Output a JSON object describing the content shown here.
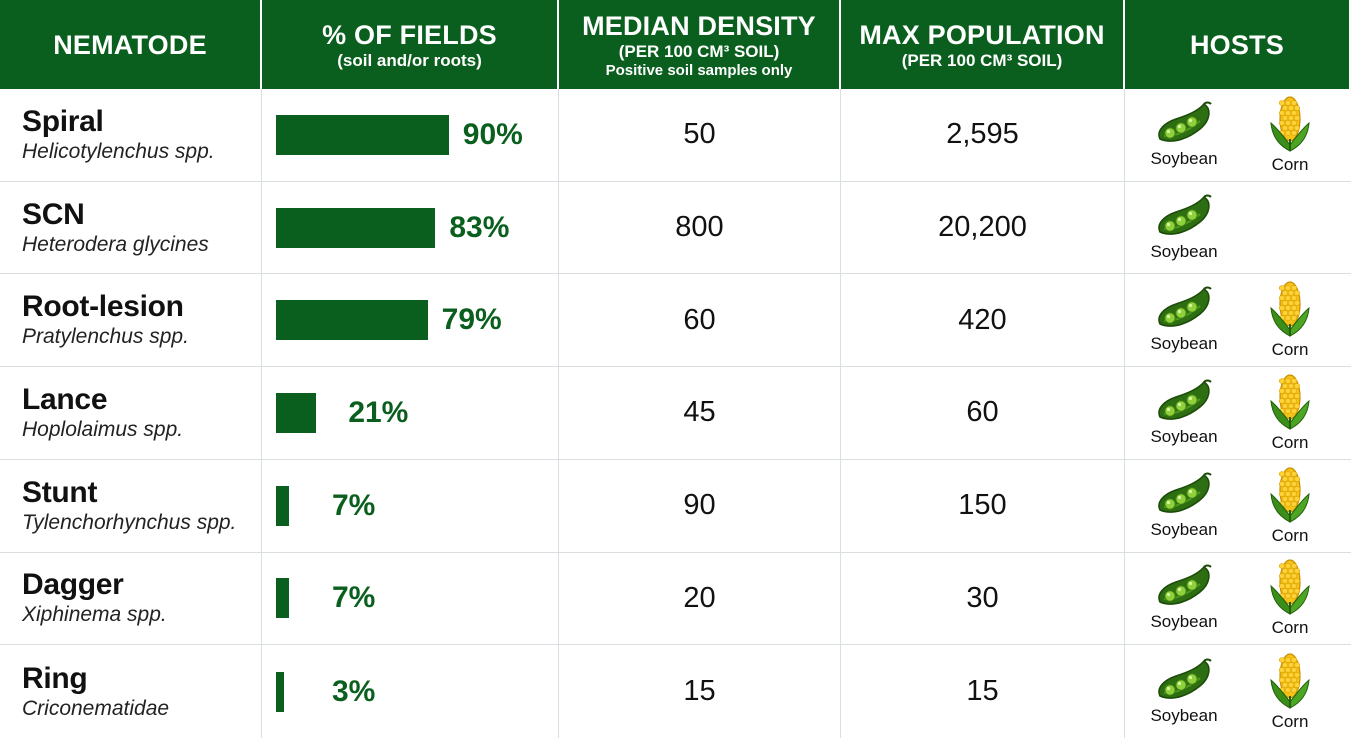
{
  "header": {
    "col1": "NEMATODE",
    "col2_title": "% OF FIELDS",
    "col2_sub": "(soil and/or roots)",
    "col3_title": "MEDIAN DENSITY",
    "col3_sub": "(PER 100 CM³ SOIL)",
    "col3_sub2": "Positive soil samples only",
    "col4_title": "MAX POPULATION",
    "col4_sub": "(PER 100 CM³ SOIL)",
    "col5": "HOSTS"
  },
  "colors": {
    "bar": "#0b5f1e",
    "header_bg": "#0b5f1e"
  },
  "chart_data": {
    "type": "table",
    "columns": [
      "NEMATODE",
      "% OF FIELDS",
      "MEDIAN DENSITY",
      "MAX POPULATION",
      "HOSTS"
    ],
    "xlim": [
      0,
      100
    ],
    "rows": [
      {
        "name": "Spiral",
        "sci": "Helicotylenchus spp.",
        "pct": 90,
        "pct_label": "90%",
        "median": "50",
        "max": "2,595",
        "hosts": [
          "Soybean",
          "Corn"
        ]
      },
      {
        "name": "SCN",
        "sci": "Heterodera glycines",
        "pct": 83,
        "pct_label": "83%",
        "median": "800",
        "max": "20,200",
        "hosts": [
          "Soybean"
        ]
      },
      {
        "name": "Root-lesion",
        "sci": "Pratylenchus spp.",
        "pct": 79,
        "pct_label": "79%",
        "median": "60",
        "max": "420",
        "hosts": [
          "Soybean",
          "Corn"
        ]
      },
      {
        "name": "Lance",
        "sci": "Hoplolaimus spp.",
        "pct": 21,
        "pct_label": "21%",
        "median": "45",
        "max": "60",
        "hosts": [
          "Soybean",
          "Corn"
        ]
      },
      {
        "name": "Stunt",
        "sci": "Tylenchorhynchus spp.",
        "pct": 7,
        "pct_label": "7%",
        "median": "90",
        "max": "150",
        "hosts": [
          "Soybean",
          "Corn"
        ]
      },
      {
        "name": "Dagger",
        "sci": "Xiphinema spp.",
        "pct": 7,
        "pct_label": "7%",
        "median": "20",
        "max": "30",
        "hosts": [
          "Soybean",
          "Corn"
        ]
      },
      {
        "name": "Ring",
        "sci": "Criconematidae",
        "pct": 3,
        "pct_label": "3%",
        "median": "15",
        "max": "15",
        "hosts": [
          "Soybean",
          "Corn"
        ]
      }
    ]
  }
}
